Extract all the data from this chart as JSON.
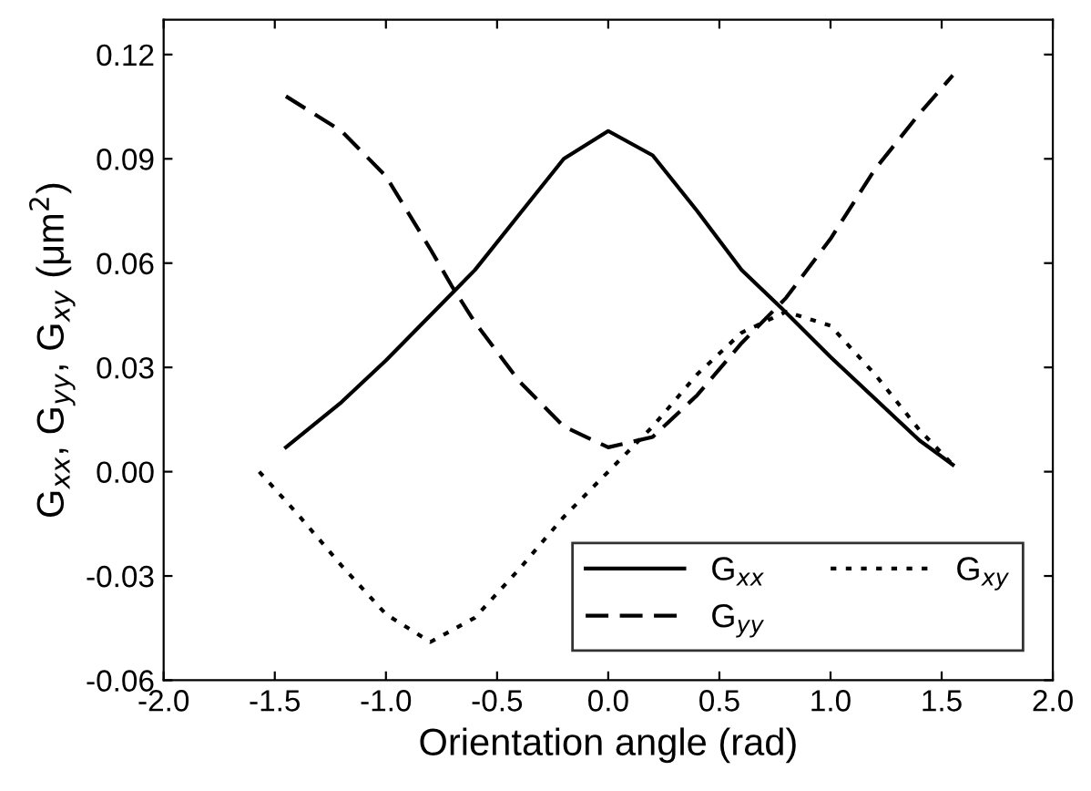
{
  "chart_data": {
    "type": "line",
    "xlabel": "Orientation angle (rad)",
    "ylabel": "G$_{xx}$, G$_{yy}$, G$_{xy}$ (μm$^{2}$)",
    "xlim": [
      -2.0,
      2.0
    ],
    "ylim": [
      -0.06,
      0.13
    ],
    "xticks": [
      {
        "value": -2.0,
        "label": "-2.0"
      },
      {
        "value": -1.5,
        "label": "-1.5"
      },
      {
        "value": -1.0,
        "label": "-1.0"
      },
      {
        "value": -0.5,
        "label": "-0.5"
      },
      {
        "value": 0,
        "label": "0.0"
      },
      {
        "value": 0.5,
        "label": "0.5"
      },
      {
        "value": 1.0,
        "label": "1.0"
      },
      {
        "value": 1.5,
        "label": "1.5"
      },
      {
        "value": 2.0,
        "label": "2.0"
      }
    ],
    "yticks": [
      {
        "value": -0.06,
        "label": "-0.06"
      },
      {
        "value": -0.03,
        "label": "-0.03"
      },
      {
        "value": 0,
        "label": "0.00"
      },
      {
        "value": 0.03,
        "label": "0.03"
      },
      {
        "value": 0.06,
        "label": "0.06"
      },
      {
        "value": 0.09,
        "label": "0.09"
      },
      {
        "value": 0.12,
        "label": "0.12"
      }
    ],
    "grid": false,
    "legend": "bottom right",
    "marker": "none",
    "series": [
      {
        "name": "G$_{xx}$",
        "color": "#000000",
        "line_style": "solid",
        "x": [
          -1.45,
          -1.2,
          -1.0,
          -0.8,
          -0.6,
          -0.4,
          -0.2,
          0,
          0.2,
          0.4,
          0.6,
          0.78,
          1.0,
          1.2,
          1.4,
          1.55
        ],
        "values": [
          0.007,
          0.02,
          0.032,
          0.045,
          0.058,
          0.074,
          0.09,
          0.098,
          0.091,
          0.075,
          0.058,
          0.047,
          0.033,
          0.021,
          0.009,
          0.002
        ]
      },
      {
        "name": "G$_{yy}$",
        "color": "#000000",
        "line_style": "dashed",
        "x": [
          -1.45,
          -1.2,
          -1.0,
          -0.8,
          -0.7,
          -0.6,
          -0.4,
          -0.2,
          0,
          0.2,
          0.4,
          0.6,
          0.8,
          1.0,
          1.2,
          1.4,
          1.55
        ],
        "values": [
          0.108,
          0.098,
          0.085,
          0.064,
          0.053,
          0.043,
          0.026,
          0.013,
          0.007,
          0.01,
          0.022,
          0.037,
          0.05,
          0.067,
          0.087,
          0.103,
          0.114
        ]
      },
      {
        "name": "G$_{xy}$",
        "color": "#000000",
        "line_style": "dotted",
        "x": [
          -1.57,
          -1.4,
          -1.2,
          -1.0,
          -0.8,
          -0.6,
          -0.4,
          -0.2,
          0,
          0.2,
          0.4,
          0.6,
          0.8,
          1.0,
          1.2,
          1.4,
          1.55
        ],
        "values": [
          0.0,
          -0.012,
          -0.027,
          -0.041,
          -0.049,
          -0.042,
          -0.028,
          -0.013,
          0.0,
          0.013,
          0.028,
          0.04,
          0.046,
          0.042,
          0.028,
          0.012,
          0.002
        ]
      }
    ]
  }
}
